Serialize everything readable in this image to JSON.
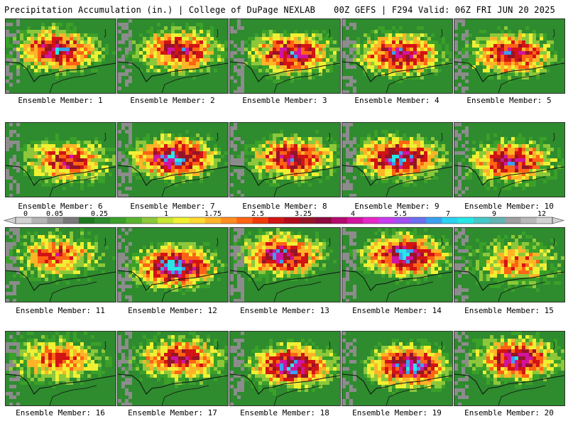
{
  "header": {
    "title_left": "Precipitation Accumulation (in.) | College of DuPage NEXLAB",
    "title_right": "00Z GEFS | F294 Valid: 06Z FRI JUN 20 2025"
  },
  "members": [
    {
      "label": "Ensemble Member: 1",
      "peak": [
        0.45,
        0.4
      ],
      "intensity": 0.78
    },
    {
      "label": "Ensemble Member: 2",
      "peak": [
        0.55,
        0.4
      ],
      "intensity": 0.7
    },
    {
      "label": "Ensemble Member: 3",
      "peak": [
        0.55,
        0.45
      ],
      "intensity": 0.75
    },
    {
      "label": "Ensemble Member: 4",
      "peak": [
        0.5,
        0.45
      ],
      "intensity": 0.75
    },
    {
      "label": "Ensemble Member: 5",
      "peak": [
        0.5,
        0.45
      ],
      "intensity": 0.75
    },
    {
      "label": "Ensemble Member: 6",
      "peak": [
        0.55,
        0.5
      ],
      "intensity": 0.65
    },
    {
      "label": "Ensemble Member: 7",
      "peak": [
        0.5,
        0.45
      ],
      "intensity": 0.85
    },
    {
      "label": "Ensemble Member: 8",
      "peak": [
        0.55,
        0.45
      ],
      "intensity": 0.72
    },
    {
      "label": "Ensemble Member: 9",
      "peak": [
        0.5,
        0.45
      ],
      "intensity": 0.85
    },
    {
      "label": "Ensemble Member: 10",
      "peak": [
        0.5,
        0.5
      ],
      "intensity": 0.72
    },
    {
      "label": "Ensemble Member: 11",
      "peak": [
        0.45,
        0.35
      ],
      "intensity": 0.55
    },
    {
      "label": "Ensemble Member: 12",
      "peak": [
        0.5,
        0.5
      ],
      "intensity": 0.88
    },
    {
      "label": "Ensemble Member: 13",
      "peak": [
        0.45,
        0.35
      ],
      "intensity": 0.8
    },
    {
      "label": "Ensemble Member: 14",
      "peak": [
        0.55,
        0.35
      ],
      "intensity": 0.85
    },
    {
      "label": "Ensemble Member: 15",
      "peak": [
        0.55,
        0.45
      ],
      "intensity": 0.5
    },
    {
      "label": "Ensemble Member: 16",
      "peak": [
        0.45,
        0.35
      ],
      "intensity": 0.55
    },
    {
      "label": "Ensemble Member: 17",
      "peak": [
        0.55,
        0.35
      ],
      "intensity": 0.7
    },
    {
      "label": "Ensemble Member: 18",
      "peak": [
        0.55,
        0.45
      ],
      "intensity": 0.85
    },
    {
      "label": "Ensemble Member: 19",
      "peak": [
        0.6,
        0.45
      ],
      "intensity": 0.85
    },
    {
      "label": "Ensemble Member: 20",
      "peak": [
        0.55,
        0.35
      ],
      "intensity": 0.8
    }
  ],
  "colorbar": {
    "colors": [
      "#d2d2d2",
      "#b4b4b4",
      "#969696",
      "#787878",
      "#1f7a1f",
      "#2e8b2e",
      "#3aa028",
      "#5ab52e",
      "#8cc83a",
      "#c8e632",
      "#f0f032",
      "#ffd732",
      "#ffb428",
      "#ff8c1e",
      "#ff6414",
      "#f03c0a",
      "#d21414",
      "#b40a1e",
      "#961428",
      "#8c0a3c",
      "#b40a6e",
      "#d214a0",
      "#e628c8",
      "#c83cf0",
      "#a050f0",
      "#6e6ef0",
      "#3ca0f0",
      "#28d2f0",
      "#28e6e6",
      "#46c8c8",
      "#64b4b4",
      "#a0a0a0",
      "#b9b9b9",
      "#d2d2d2"
    ],
    "labels": [
      "0",
      "0.05",
      "0.25",
      "1",
      "1.75",
      "2.5",
      "3.25",
      "4",
      "5.5",
      "7",
      "9",
      "12"
    ]
  }
}
